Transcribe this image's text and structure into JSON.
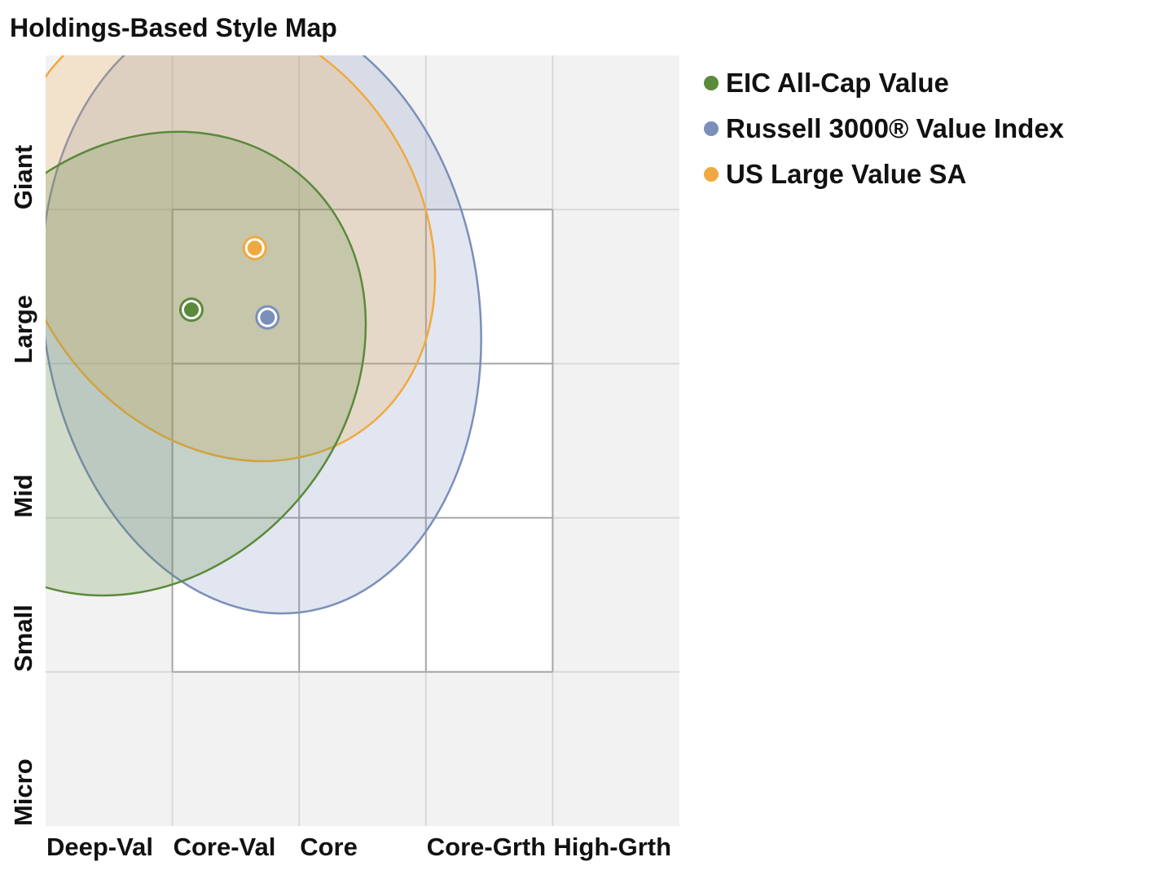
{
  "chart_data": {
    "type": "scatter",
    "title": "Holdings-Based Style Map",
    "xlabel": "",
    "ylabel": "",
    "x_categories": [
      "Deep-Val",
      "Core-Val",
      "Core",
      "Core-Grth",
      "High-Grth"
    ],
    "y_categories": [
      "Giant",
      "Large",
      "Mid",
      "Small",
      "Micro"
    ],
    "style_box": {
      "x": [
        1,
        4
      ],
      "y": [
        1,
        4
      ]
    },
    "grid": true,
    "legend_position": "right",
    "series": [
      {
        "name": "EIC All-Cap Value",
        "color": "#5a8a3a",
        "x": 1.15,
        "y": 1.65,
        "ellipse": {
          "cx": 0.75,
          "cy": 2.0,
          "rx": 1.95,
          "ry": 1.35,
          "rotation": -50
        }
      },
      {
        "name": "Russell 3000® Value Index",
        "color": "#7b8fba",
        "x": 1.75,
        "y": 1.7,
        "ellipse": {
          "cx": 1.7,
          "cy": 1.65,
          "rx": 1.72,
          "ry": 1.98,
          "rotation": -8
        }
      },
      {
        "name": "US Large Value SA",
        "color": "#f0a941",
        "x": 1.65,
        "y": 1.25,
        "ellipse": {
          "cx": 1.4,
          "cy": 1.16,
          "rx": 1.55,
          "ry": 1.56,
          "rotation": -35
        }
      }
    ]
  }
}
